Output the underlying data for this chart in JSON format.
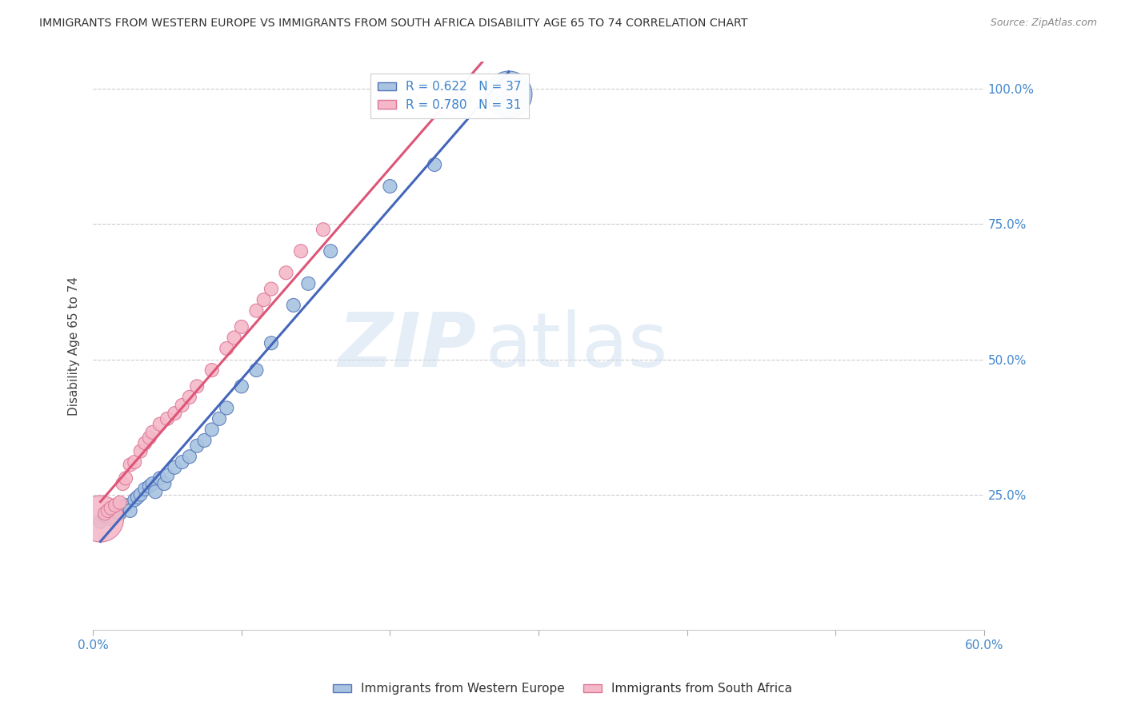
{
  "title": "IMMIGRANTS FROM WESTERN EUROPE VS IMMIGRANTS FROM SOUTH AFRICA DISABILITY AGE 65 TO 74 CORRELATION CHART",
  "source": "Source: ZipAtlas.com",
  "ylabel": "Disability Age 65 to 74",
  "xlim": [
    0.0,
    0.6
  ],
  "ylim": [
    0.0,
    1.05
  ],
  "x_tick_positions": [
    0.0,
    0.1,
    0.2,
    0.3,
    0.4,
    0.5,
    0.6
  ],
  "x_tick_labels": [
    "0.0%",
    "",
    "",
    "",
    "",
    "",
    "60.0%"
  ],
  "y_ticks_right": [
    0.0,
    0.25,
    0.5,
    0.75,
    1.0
  ],
  "y_tick_labels_right": [
    "",
    "25.0%",
    "50.0%",
    "75.0%",
    "100.0%"
  ],
  "blue_color": "#a8c4e0",
  "pink_color": "#f4b8c8",
  "blue_edge_color": "#5577bb",
  "pink_edge_color": "#dd7799",
  "blue_line_color": "#4466bb",
  "pink_line_color": "#dd5577",
  "watermark_zip": "ZIP",
  "watermark_atlas": "atlas",
  "legend_label_blue": "R = 0.622   N = 37",
  "legend_label_pink": "R = 0.780   N = 31",
  "legend_bottom_blue": "Immigrants from Western Europe",
  "legend_bottom_pink": "Immigrants from South Africa",
  "background_color": "#ffffff",
  "grid_color": "#cccccc",
  "blue_scatter_x": [
    0.005,
    0.008,
    0.01,
    0.012,
    0.015,
    0.018,
    0.02,
    0.022,
    0.025,
    0.028,
    0.03,
    0.032,
    0.035,
    0.038,
    0.04,
    0.042,
    0.045,
    0.048,
    0.05,
    0.055,
    0.06,
    0.065,
    0.07,
    0.075,
    0.08,
    0.085,
    0.09,
    0.1,
    0.11,
    0.12,
    0.135,
    0.145,
    0.16,
    0.2,
    0.23,
    0.25,
    0.28
  ],
  "blue_scatter_y": [
    0.2,
    0.21,
    0.215,
    0.205,
    0.22,
    0.215,
    0.225,
    0.23,
    0.22,
    0.24,
    0.245,
    0.25,
    0.26,
    0.265,
    0.27,
    0.255,
    0.28,
    0.27,
    0.285,
    0.3,
    0.31,
    0.32,
    0.34,
    0.35,
    0.37,
    0.39,
    0.41,
    0.45,
    0.48,
    0.53,
    0.6,
    0.64,
    0.7,
    0.82,
    0.86,
    0.98,
    0.99
  ],
  "blue_scatter_size": [
    30,
    30,
    30,
    30,
    30,
    30,
    30,
    30,
    30,
    30,
    30,
    30,
    30,
    30,
    30,
    30,
    30,
    30,
    30,
    30,
    30,
    30,
    30,
    30,
    30,
    30,
    30,
    30,
    30,
    30,
    30,
    30,
    30,
    30,
    30,
    30,
    350
  ],
  "pink_scatter_x": [
    0.005,
    0.008,
    0.01,
    0.012,
    0.015,
    0.018,
    0.02,
    0.022,
    0.025,
    0.028,
    0.032,
    0.035,
    0.038,
    0.04,
    0.045,
    0.05,
    0.055,
    0.06,
    0.065,
    0.07,
    0.08,
    0.09,
    0.095,
    0.1,
    0.11,
    0.115,
    0.12,
    0.13,
    0.14,
    0.155,
    0.28
  ],
  "pink_scatter_y": [
    0.205,
    0.215,
    0.22,
    0.225,
    0.23,
    0.235,
    0.27,
    0.28,
    0.305,
    0.31,
    0.33,
    0.345,
    0.355,
    0.365,
    0.38,
    0.39,
    0.4,
    0.415,
    0.43,
    0.45,
    0.48,
    0.52,
    0.54,
    0.56,
    0.59,
    0.61,
    0.63,
    0.66,
    0.7,
    0.74,
    1.0
  ],
  "pink_scatter_size": [
    350,
    30,
    30,
    30,
    30,
    30,
    30,
    30,
    30,
    30,
    30,
    30,
    30,
    30,
    30,
    30,
    30,
    30,
    30,
    30,
    30,
    30,
    30,
    30,
    30,
    30,
    30,
    30,
    30,
    30,
    30
  ]
}
